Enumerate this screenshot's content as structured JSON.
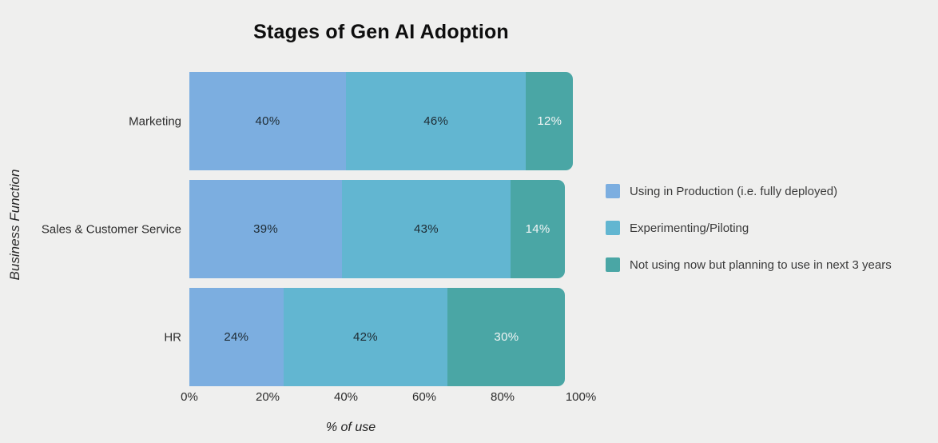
{
  "background_color": "#efefee",
  "chart_data": {
    "type": "bar",
    "variant": "horizontal-stacked",
    "title": "Stages of Gen AI Adoption",
    "xlabel": "% of use",
    "ylabel": "Business Function",
    "xlim": [
      0,
      100
    ],
    "xticks": [
      "0%",
      "20%",
      "40%",
      "60%",
      "80%",
      "100%"
    ],
    "grid": false,
    "legend_position": "right",
    "value_suffix": "%",
    "categories": [
      "Marketing",
      "Sales & Customer Service",
      "HR"
    ],
    "series": [
      {
        "name": "Using in Production (i.e. fully deployed)",
        "color": "#7CAEE0",
        "label_color": "#1e2b33",
        "values": [
          40,
          39,
          24
        ]
      },
      {
        "name": "Experimenting/Piloting",
        "color": "#62B6D1",
        "label_color": "#1e2b33",
        "values": [
          46,
          43,
          42
        ]
      },
      {
        "name": "Not using now but planning to use in next 3 years",
        "color": "#4AA6A5",
        "label_color": "#f2f5f5",
        "values": [
          12,
          14,
          30
        ]
      }
    ]
  }
}
